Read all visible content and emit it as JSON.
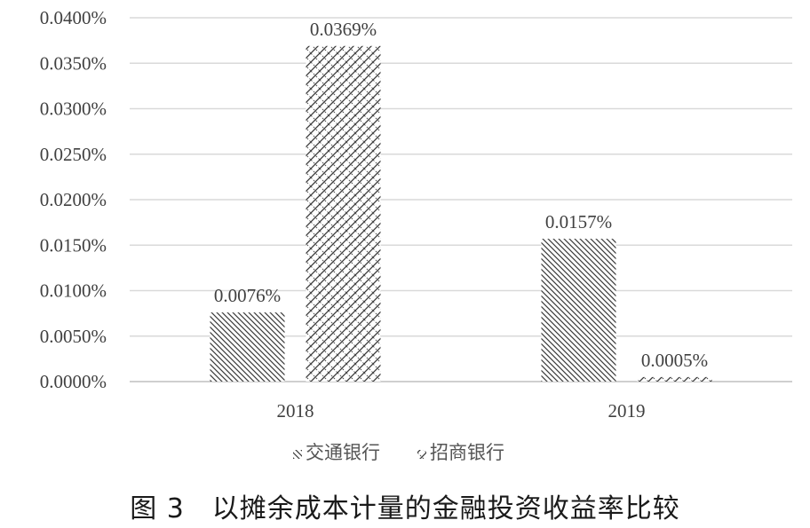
{
  "chart_data": {
    "type": "bar",
    "categories": [
      "2018",
      "2019"
    ],
    "series": [
      {
        "name": "交通银行",
        "values": [
          0.0076,
          0.0157
        ],
        "labels": [
          "0.0076%",
          "0.0157%"
        ]
      },
      {
        "name": "招商银行",
        "values": [
          0.0369,
          0.0005
        ],
        "labels": [
          "0.0369%",
          "0.0005%"
        ]
      }
    ],
    "ylim": [
      0,
      0.04
    ],
    "yticks": [
      "0.0000%",
      "0.0050%",
      "0.0100%",
      "0.0150%",
      "0.0200%",
      "0.0250%",
      "0.0300%",
      "0.0350%",
      "0.0400%"
    ],
    "grid": true,
    "legend_position": "bottom"
  },
  "caption": "图 3　以摊余成本计量的金融投资收益率比较"
}
